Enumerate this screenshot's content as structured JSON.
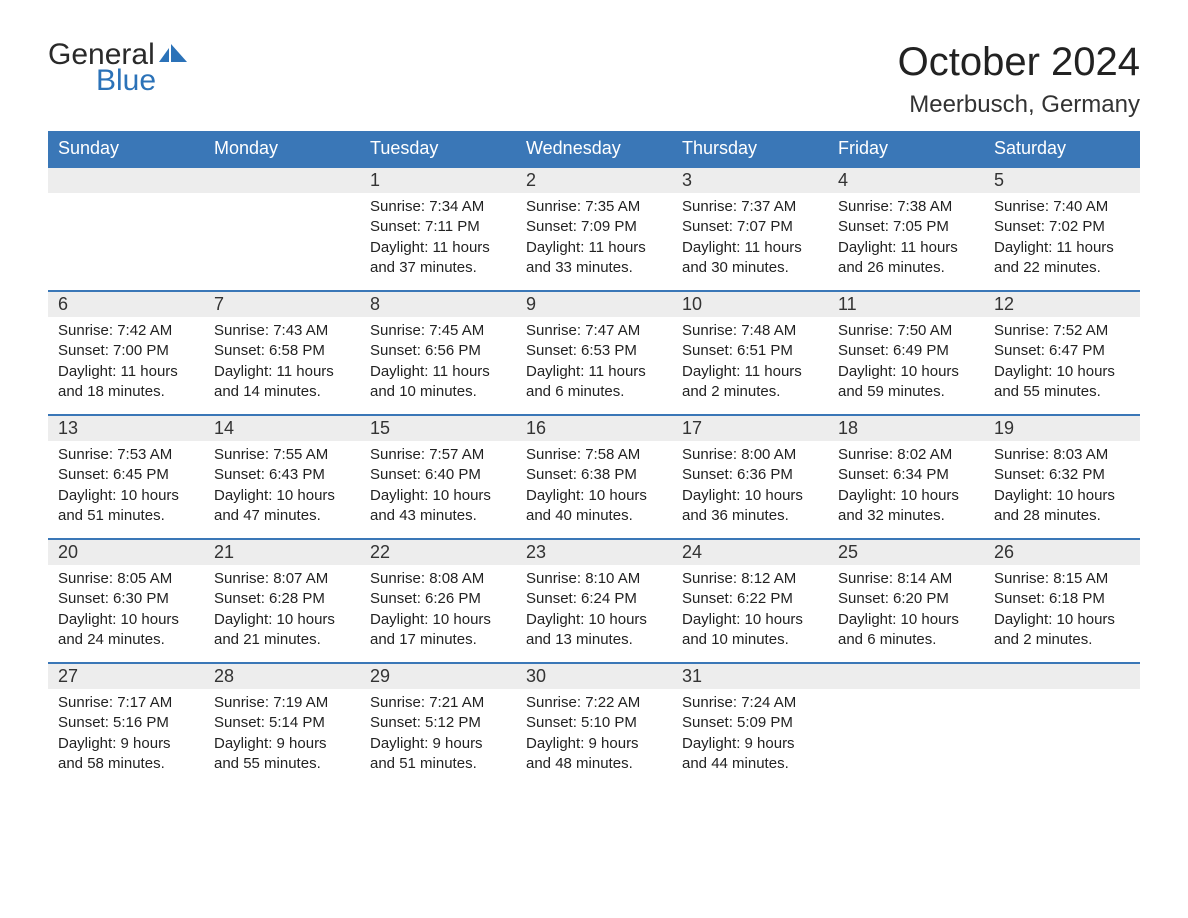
{
  "logo": {
    "word1": "General",
    "word2": "Blue",
    "word1_color": "#2a2a2a",
    "word2_color": "#2b72b8",
    "flag_color": "#2b72b8"
  },
  "title": "October 2024",
  "location": "Meerbusch, Germany",
  "colors": {
    "header_bg": "#3a77b7",
    "header_text": "#ffffff",
    "daynum_bg": "#ededed",
    "row_border": "#3a77b7",
    "body_text": "#222222",
    "page_bg": "#ffffff"
  },
  "typography": {
    "title_fontsize": 40,
    "location_fontsize": 24,
    "header_fontsize": 18,
    "daynum_fontsize": 18,
    "body_fontsize": 15
  },
  "weekdays": [
    "Sunday",
    "Monday",
    "Tuesday",
    "Wednesday",
    "Thursday",
    "Friday",
    "Saturday"
  ],
  "labels": {
    "sunrise": "Sunrise:",
    "sunset": "Sunset:",
    "daylight": "Daylight:"
  },
  "weeks": [
    [
      null,
      null,
      {
        "n": "1",
        "sunrise": "7:34 AM",
        "sunset": "7:11 PM",
        "daylight_l1": "11 hours",
        "daylight_l2": "and 37 minutes."
      },
      {
        "n": "2",
        "sunrise": "7:35 AM",
        "sunset": "7:09 PM",
        "daylight_l1": "11 hours",
        "daylight_l2": "and 33 minutes."
      },
      {
        "n": "3",
        "sunrise": "7:37 AM",
        "sunset": "7:07 PM",
        "daylight_l1": "11 hours",
        "daylight_l2": "and 30 minutes."
      },
      {
        "n": "4",
        "sunrise": "7:38 AM",
        "sunset": "7:05 PM",
        "daylight_l1": "11 hours",
        "daylight_l2": "and 26 minutes."
      },
      {
        "n": "5",
        "sunrise": "7:40 AM",
        "sunset": "7:02 PM",
        "daylight_l1": "11 hours",
        "daylight_l2": "and 22 minutes."
      }
    ],
    [
      {
        "n": "6",
        "sunrise": "7:42 AM",
        "sunset": "7:00 PM",
        "daylight_l1": "11 hours",
        "daylight_l2": "and 18 minutes."
      },
      {
        "n": "7",
        "sunrise": "7:43 AM",
        "sunset": "6:58 PM",
        "daylight_l1": "11 hours",
        "daylight_l2": "and 14 minutes."
      },
      {
        "n": "8",
        "sunrise": "7:45 AM",
        "sunset": "6:56 PM",
        "daylight_l1": "11 hours",
        "daylight_l2": "and 10 minutes."
      },
      {
        "n": "9",
        "sunrise": "7:47 AM",
        "sunset": "6:53 PM",
        "daylight_l1": "11 hours",
        "daylight_l2": "and 6 minutes."
      },
      {
        "n": "10",
        "sunrise": "7:48 AM",
        "sunset": "6:51 PM",
        "daylight_l1": "11 hours",
        "daylight_l2": "and 2 minutes."
      },
      {
        "n": "11",
        "sunrise": "7:50 AM",
        "sunset": "6:49 PM",
        "daylight_l1": "10 hours",
        "daylight_l2": "and 59 minutes."
      },
      {
        "n": "12",
        "sunrise": "7:52 AM",
        "sunset": "6:47 PM",
        "daylight_l1": "10 hours",
        "daylight_l2": "and 55 minutes."
      }
    ],
    [
      {
        "n": "13",
        "sunrise": "7:53 AM",
        "sunset": "6:45 PM",
        "daylight_l1": "10 hours",
        "daylight_l2": "and 51 minutes."
      },
      {
        "n": "14",
        "sunrise": "7:55 AM",
        "sunset": "6:43 PM",
        "daylight_l1": "10 hours",
        "daylight_l2": "and 47 minutes."
      },
      {
        "n": "15",
        "sunrise": "7:57 AM",
        "sunset": "6:40 PM",
        "daylight_l1": "10 hours",
        "daylight_l2": "and 43 minutes."
      },
      {
        "n": "16",
        "sunrise": "7:58 AM",
        "sunset": "6:38 PM",
        "daylight_l1": "10 hours",
        "daylight_l2": "and 40 minutes."
      },
      {
        "n": "17",
        "sunrise": "8:00 AM",
        "sunset": "6:36 PM",
        "daylight_l1": "10 hours",
        "daylight_l2": "and 36 minutes."
      },
      {
        "n": "18",
        "sunrise": "8:02 AM",
        "sunset": "6:34 PM",
        "daylight_l1": "10 hours",
        "daylight_l2": "and 32 minutes."
      },
      {
        "n": "19",
        "sunrise": "8:03 AM",
        "sunset": "6:32 PM",
        "daylight_l1": "10 hours",
        "daylight_l2": "and 28 minutes."
      }
    ],
    [
      {
        "n": "20",
        "sunrise": "8:05 AM",
        "sunset": "6:30 PM",
        "daylight_l1": "10 hours",
        "daylight_l2": "and 24 minutes."
      },
      {
        "n": "21",
        "sunrise": "8:07 AM",
        "sunset": "6:28 PM",
        "daylight_l1": "10 hours",
        "daylight_l2": "and 21 minutes."
      },
      {
        "n": "22",
        "sunrise": "8:08 AM",
        "sunset": "6:26 PM",
        "daylight_l1": "10 hours",
        "daylight_l2": "and 17 minutes."
      },
      {
        "n": "23",
        "sunrise": "8:10 AM",
        "sunset": "6:24 PM",
        "daylight_l1": "10 hours",
        "daylight_l2": "and 13 minutes."
      },
      {
        "n": "24",
        "sunrise": "8:12 AM",
        "sunset": "6:22 PM",
        "daylight_l1": "10 hours",
        "daylight_l2": "and 10 minutes."
      },
      {
        "n": "25",
        "sunrise": "8:14 AM",
        "sunset": "6:20 PM",
        "daylight_l1": "10 hours",
        "daylight_l2": "and 6 minutes."
      },
      {
        "n": "26",
        "sunrise": "8:15 AM",
        "sunset": "6:18 PM",
        "daylight_l1": "10 hours",
        "daylight_l2": "and 2 minutes."
      }
    ],
    [
      {
        "n": "27",
        "sunrise": "7:17 AM",
        "sunset": "5:16 PM",
        "daylight_l1": "9 hours",
        "daylight_l2": "and 58 minutes."
      },
      {
        "n": "28",
        "sunrise": "7:19 AM",
        "sunset": "5:14 PM",
        "daylight_l1": "9 hours",
        "daylight_l2": "and 55 minutes."
      },
      {
        "n": "29",
        "sunrise": "7:21 AM",
        "sunset": "5:12 PM",
        "daylight_l1": "9 hours",
        "daylight_l2": "and 51 minutes."
      },
      {
        "n": "30",
        "sunrise": "7:22 AM",
        "sunset": "5:10 PM",
        "daylight_l1": "9 hours",
        "daylight_l2": "and 48 minutes."
      },
      {
        "n": "31",
        "sunrise": "7:24 AM",
        "sunset": "5:09 PM",
        "daylight_l1": "9 hours",
        "daylight_l2": "and 44 minutes."
      },
      null,
      null
    ]
  ]
}
